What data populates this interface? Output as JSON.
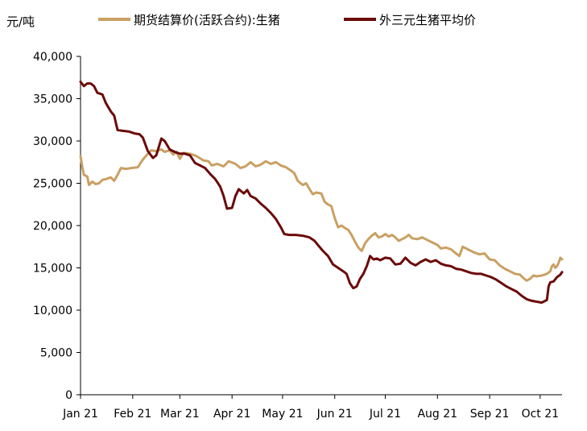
{
  "chart_data": {
    "type": "line",
    "y_unit": "元/吨",
    "ylim": [
      0,
      40000
    ],
    "y_ticks": [
      0,
      5000,
      10000,
      15000,
      20000,
      25000,
      30000,
      35000,
      40000
    ],
    "y_tick_labels": [
      "0",
      "5,000",
      "10,000",
      "15,000",
      "20,000",
      "25,000",
      "30,000",
      "35,000",
      "40,000"
    ],
    "x_tick_labels": [
      "Jan 21",
      "Feb 21",
      "Mar 21",
      "Apr 21",
      "May 21",
      "Jun 21",
      "Jul 21",
      "Aug 21",
      "Sep 21",
      "Oct 21"
    ],
    "x_tick_dates": [
      "2021-01-01",
      "2021-02-01",
      "2021-03-01",
      "2021-04-01",
      "2021-05-01",
      "2021-06-01",
      "2021-07-01",
      "2021-08-01",
      "2021-09-01",
      "2021-10-01"
    ],
    "xlim": [
      "2021-01-01",
      "2021-10-14"
    ],
    "grid": false,
    "legend_position": "top",
    "series": [
      {
        "name": "期货结算价(活跃合约):生猪",
        "color": "#C9A063",
        "points": [
          [
            "2021-01-01",
            28200
          ],
          [
            "2021-01-02",
            27000
          ],
          [
            "2021-01-03",
            26000
          ],
          [
            "2021-01-05",
            25800
          ],
          [
            "2021-01-06",
            24800
          ],
          [
            "2021-01-08",
            25200
          ],
          [
            "2021-01-10",
            24900
          ],
          [
            "2021-01-12",
            25000
          ],
          [
            "2021-01-14",
            25400
          ],
          [
            "2021-01-16",
            25500
          ],
          [
            "2021-01-19",
            25700
          ],
          [
            "2021-01-21",
            25300
          ],
          [
            "2021-01-23",
            26000
          ],
          [
            "2021-01-25",
            26800
          ],
          [
            "2021-01-28",
            26700
          ],
          [
            "2021-01-31",
            26800
          ],
          [
            "2021-02-04",
            26900
          ],
          [
            "2021-02-07",
            27800
          ],
          [
            "2021-02-10",
            28500
          ],
          [
            "2021-02-12",
            28900
          ],
          [
            "2021-02-15",
            28800
          ],
          [
            "2021-02-18",
            29000
          ],
          [
            "2021-02-20",
            28700
          ],
          [
            "2021-02-23",
            28900
          ],
          [
            "2021-02-25",
            28400
          ],
          [
            "2021-02-27",
            28700
          ],
          [
            "2021-03-01",
            27900
          ],
          [
            "2021-03-03",
            28600
          ],
          [
            "2021-03-07",
            28500
          ],
          [
            "2021-03-11",
            28200
          ],
          [
            "2021-03-15",
            27700
          ],
          [
            "2021-03-18",
            27600
          ],
          [
            "2021-03-20",
            27100
          ],
          [
            "2021-03-23",
            27300
          ],
          [
            "2021-03-27",
            27000
          ],
          [
            "2021-03-30",
            27600
          ],
          [
            "2021-04-03",
            27300
          ],
          [
            "2021-04-06",
            26800
          ],
          [
            "2021-04-09",
            27000
          ],
          [
            "2021-04-12",
            27500
          ],
          [
            "2021-04-15",
            27000
          ],
          [
            "2021-04-18",
            27200
          ],
          [
            "2021-04-21",
            27600
          ],
          [
            "2021-04-24",
            27300
          ],
          [
            "2021-04-27",
            27500
          ],
          [
            "2021-04-30",
            27100
          ],
          [
            "2021-05-03",
            26900
          ],
          [
            "2021-05-06",
            26500
          ],
          [
            "2021-05-08",
            26200
          ],
          [
            "2021-05-10",
            25300
          ],
          [
            "2021-05-13",
            24800
          ],
          [
            "2021-05-15",
            25000
          ],
          [
            "2021-05-17",
            24300
          ],
          [
            "2021-05-19",
            23700
          ],
          [
            "2021-05-21",
            23900
          ],
          [
            "2021-05-24",
            23800
          ],
          [
            "2021-05-26",
            22800
          ],
          [
            "2021-05-28",
            22500
          ],
          [
            "2021-05-30",
            22300
          ],
          [
            "2021-06-01",
            20900
          ],
          [
            "2021-06-03",
            19800
          ],
          [
            "2021-06-05",
            20000
          ],
          [
            "2021-06-07",
            19700
          ],
          [
            "2021-06-09",
            19500
          ],
          [
            "2021-06-11",
            18900
          ],
          [
            "2021-06-13",
            18100
          ],
          [
            "2021-06-15",
            17400
          ],
          [
            "2021-06-17",
            17000
          ],
          [
            "2021-06-19",
            17900
          ],
          [
            "2021-06-21",
            18400
          ],
          [
            "2021-06-23",
            18800
          ],
          [
            "2021-06-25",
            19100
          ],
          [
            "2021-06-27",
            18600
          ],
          [
            "2021-06-29",
            18700
          ],
          [
            "2021-07-01",
            19000
          ],
          [
            "2021-07-03",
            18700
          ],
          [
            "2021-07-05",
            18900
          ],
          [
            "2021-07-07",
            18600
          ],
          [
            "2021-07-09",
            18200
          ],
          [
            "2021-07-11",
            18400
          ],
          [
            "2021-07-13",
            18600
          ],
          [
            "2021-07-15",
            18900
          ],
          [
            "2021-07-17",
            18500
          ],
          [
            "2021-07-20",
            18400
          ],
          [
            "2021-07-23",
            18600
          ],
          [
            "2021-07-26",
            18300
          ],
          [
            "2021-07-29",
            18000
          ],
          [
            "2021-08-01",
            17700
          ],
          [
            "2021-08-03",
            17300
          ],
          [
            "2021-08-06",
            17400
          ],
          [
            "2021-08-09",
            17200
          ],
          [
            "2021-08-12",
            16700
          ],
          [
            "2021-08-14",
            16400
          ],
          [
            "2021-08-16",
            17500
          ],
          [
            "2021-08-18",
            17300
          ],
          [
            "2021-08-20",
            17100
          ],
          [
            "2021-08-23",
            16800
          ],
          [
            "2021-08-26",
            16600
          ],
          [
            "2021-08-29",
            16700
          ],
          [
            "2021-09-01",
            16000
          ],
          [
            "2021-09-04",
            15900
          ],
          [
            "2021-09-07",
            15300
          ],
          [
            "2021-09-10",
            14900
          ],
          [
            "2021-09-13",
            14600
          ],
          [
            "2021-09-16",
            14300
          ],
          [
            "2021-09-19",
            14200
          ],
          [
            "2021-09-21",
            13800
          ],
          [
            "2021-09-23",
            13500
          ],
          [
            "2021-09-25",
            13700
          ],
          [
            "2021-09-27",
            14100
          ],
          [
            "2021-09-29",
            14000
          ],
          [
            "2021-10-02",
            14100
          ],
          [
            "2021-10-05",
            14300
          ],
          [
            "2021-10-07",
            14600
          ],
          [
            "2021-10-08",
            15200
          ],
          [
            "2021-10-09",
            15400
          ],
          [
            "2021-10-10",
            15000
          ],
          [
            "2021-10-11",
            15200
          ],
          [
            "2021-10-12",
            15600
          ],
          [
            "2021-10-13",
            16200
          ],
          [
            "2021-10-14",
            16000
          ]
        ]
      },
      {
        "name": "外三元生猪平均价",
        "color": "#6B0A0A",
        "points": [
          [
            "2021-01-01",
            37000
          ],
          [
            "2021-01-03",
            36500
          ],
          [
            "2021-01-05",
            36800
          ],
          [
            "2021-01-07",
            36800
          ],
          [
            "2021-01-09",
            36500
          ],
          [
            "2021-01-11",
            35700
          ],
          [
            "2021-01-14",
            35500
          ],
          [
            "2021-01-16",
            34500
          ],
          [
            "2021-01-19",
            33500
          ],
          [
            "2021-01-21",
            33000
          ],
          [
            "2021-01-23",
            31300
          ],
          [
            "2021-01-26",
            31200
          ],
          [
            "2021-01-30",
            31100
          ],
          [
            "2021-02-02",
            30900
          ],
          [
            "2021-02-05",
            30800
          ],
          [
            "2021-02-07",
            30400
          ],
          [
            "2021-02-10",
            28800
          ],
          [
            "2021-02-13",
            28000
          ],
          [
            "2021-02-15",
            28300
          ],
          [
            "2021-02-18",
            30300
          ],
          [
            "2021-02-20",
            30000
          ],
          [
            "2021-02-23",
            29000
          ],
          [
            "2021-02-26",
            28700
          ],
          [
            "2021-03-01",
            28500
          ],
          [
            "2021-03-04",
            28500
          ],
          [
            "2021-03-07",
            28300
          ],
          [
            "2021-03-10",
            27400
          ],
          [
            "2021-03-13",
            27100
          ],
          [
            "2021-03-16",
            26800
          ],
          [
            "2021-03-19",
            26100
          ],
          [
            "2021-03-22",
            25500
          ],
          [
            "2021-03-25",
            24600
          ],
          [
            "2021-03-27",
            23500
          ],
          [
            "2021-03-29",
            22000
          ],
          [
            "2021-04-01",
            22100
          ],
          [
            "2021-04-03",
            23500
          ],
          [
            "2021-04-05",
            24300
          ],
          [
            "2021-04-08",
            23800
          ],
          [
            "2021-04-10",
            24200
          ],
          [
            "2021-04-12",
            23500
          ],
          [
            "2021-04-15",
            23200
          ],
          [
            "2021-04-18",
            22600
          ],
          [
            "2021-04-21",
            22100
          ],
          [
            "2021-04-24",
            21500
          ],
          [
            "2021-04-27",
            20800
          ],
          [
            "2021-04-30",
            19800
          ],
          [
            "2021-05-02",
            19000
          ],
          [
            "2021-05-05",
            18900
          ],
          [
            "2021-05-09",
            18900
          ],
          [
            "2021-05-13",
            18800
          ],
          [
            "2021-05-17",
            18600
          ],
          [
            "2021-05-20",
            18200
          ],
          [
            "2021-05-22",
            17700
          ],
          [
            "2021-05-25",
            17000
          ],
          [
            "2021-05-28",
            16400
          ],
          [
            "2021-05-31",
            15400
          ],
          [
            "2021-06-03",
            15000
          ],
          [
            "2021-06-06",
            14600
          ],
          [
            "2021-06-08",
            14300
          ],
          [
            "2021-06-10",
            13200
          ],
          [
            "2021-06-12",
            12600
          ],
          [
            "2021-06-14",
            12800
          ],
          [
            "2021-06-16",
            13700
          ],
          [
            "2021-06-18",
            14300
          ],
          [
            "2021-06-20",
            15200
          ],
          [
            "2021-06-22",
            16400
          ],
          [
            "2021-06-24",
            16000
          ],
          [
            "2021-06-26",
            16100
          ],
          [
            "2021-06-28",
            15900
          ],
          [
            "2021-07-01",
            16200
          ],
          [
            "2021-07-04",
            16100
          ],
          [
            "2021-07-07",
            15400
          ],
          [
            "2021-07-10",
            15500
          ],
          [
            "2021-07-13",
            16200
          ],
          [
            "2021-07-16",
            15600
          ],
          [
            "2021-07-19",
            15300
          ],
          [
            "2021-07-22",
            15700
          ],
          [
            "2021-07-25",
            16000
          ],
          [
            "2021-07-28",
            15700
          ],
          [
            "2021-07-31",
            15900
          ],
          [
            "2021-08-03",
            15500
          ],
          [
            "2021-08-06",
            15300
          ],
          [
            "2021-08-09",
            15200
          ],
          [
            "2021-08-12",
            14900
          ],
          [
            "2021-08-15",
            14800
          ],
          [
            "2021-08-18",
            14600
          ],
          [
            "2021-08-21",
            14400
          ],
          [
            "2021-08-24",
            14300
          ],
          [
            "2021-08-27",
            14300
          ],
          [
            "2021-08-30",
            14100
          ],
          [
            "2021-09-02",
            13900
          ],
          [
            "2021-09-05",
            13600
          ],
          [
            "2021-09-08",
            13200
          ],
          [
            "2021-09-11",
            12800
          ],
          [
            "2021-09-14",
            12500
          ],
          [
            "2021-09-17",
            12200
          ],
          [
            "2021-09-20",
            11700
          ],
          [
            "2021-09-23",
            11300
          ],
          [
            "2021-09-26",
            11100
          ],
          [
            "2021-09-29",
            11000
          ],
          [
            "2021-10-02",
            10900
          ],
          [
            "2021-10-04",
            11100
          ],
          [
            "2021-10-05",
            11200
          ],
          [
            "2021-10-06",
            12800
          ],
          [
            "2021-10-07",
            13300
          ],
          [
            "2021-10-09",
            13400
          ],
          [
            "2021-10-11",
            13900
          ],
          [
            "2021-10-13",
            14200
          ],
          [
            "2021-10-14",
            14500
          ]
        ]
      }
    ]
  }
}
